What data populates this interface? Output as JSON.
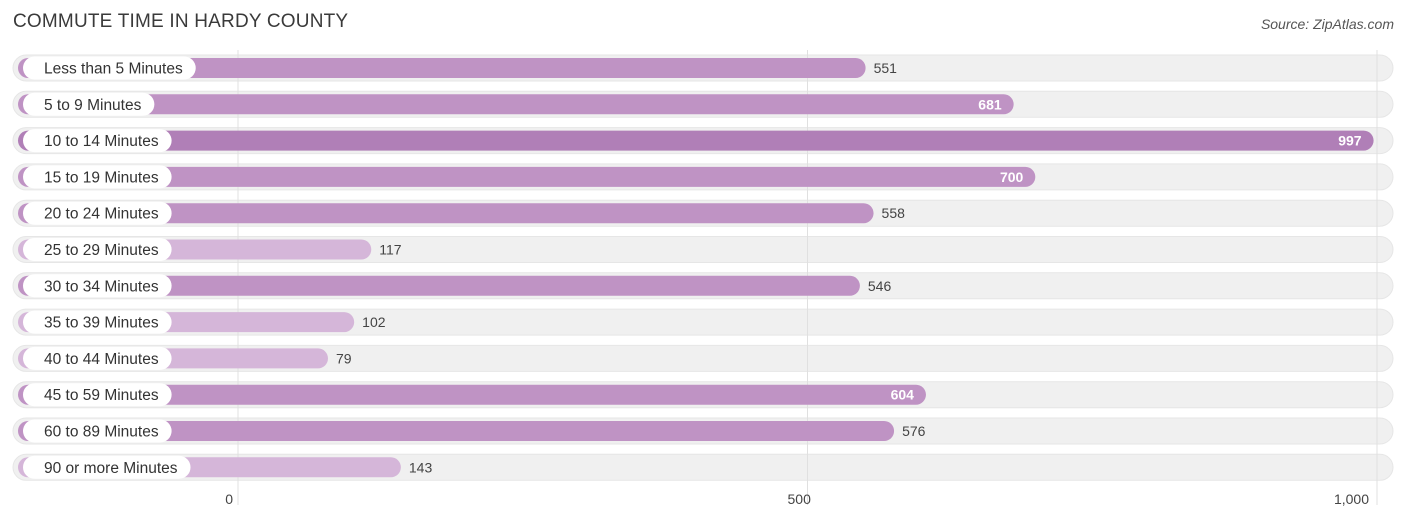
{
  "header": {
    "title": "COMMUTE TIME IN HARDY COUNTY",
    "source": "Source: ZipAtlas.com"
  },
  "colors": {
    "bar_strong": "#b07fb7",
    "bar_mid": "#bf93c4",
    "bar_light": "#d5b6d9",
    "track": "#f0f0f0",
    "grid": "#e0e0e0"
  },
  "chart_data": {
    "type": "bar",
    "orientation": "horizontal",
    "categories": [
      "Less than 5 Minutes",
      "5 to 9 Minutes",
      "10 to 14 Minutes",
      "15 to 19 Minutes",
      "20 to 24 Minutes",
      "25 to 29 Minutes",
      "30 to 34 Minutes",
      "35 to 39 Minutes",
      "40 to 44 Minutes",
      "45 to 59 Minutes",
      "60 to 89 Minutes",
      "90 or more Minutes"
    ],
    "values": [
      551,
      681,
      997,
      700,
      558,
      117,
      546,
      102,
      79,
      604,
      576,
      143
    ],
    "value_labels": [
      "551",
      "681",
      "997",
      "700",
      "558",
      "117",
      "546",
      "102",
      "79",
      "604",
      "576",
      "143"
    ],
    "xlim": [
      0,
      1000
    ],
    "x_ticks": [
      0,
      500,
      1000
    ],
    "x_tick_labels": [
      "0",
      "500",
      "1,000"
    ],
    "grid": true,
    "legend": "none"
  }
}
